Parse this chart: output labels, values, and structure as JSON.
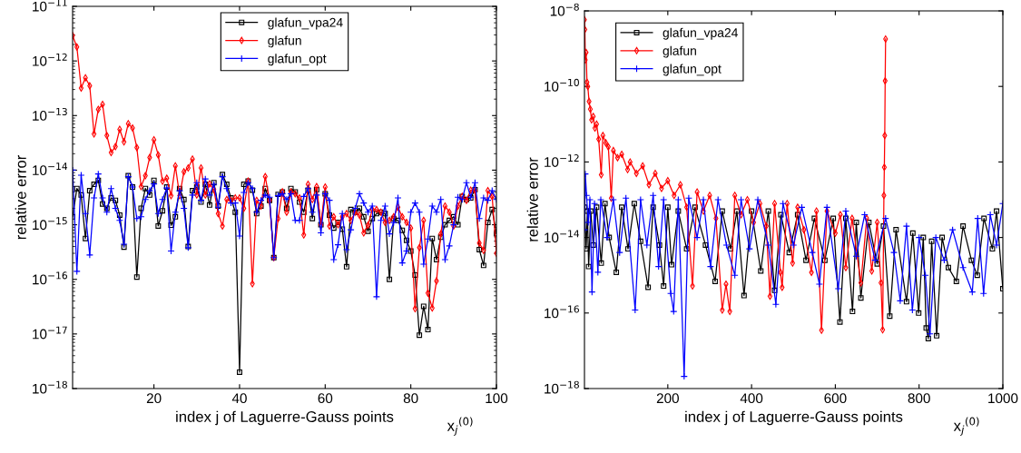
{
  "chart_data": [
    {
      "type": "line",
      "xlabel": "index j of Laguerre-Gauss points",
      "ylabel": "relative error",
      "annotations": [
        "x$_{j}$$^{(0)}$"
      ],
      "log": "y",
      "legend": "top",
      "grid": false,
      "xlim": [
        1,
        100
      ],
      "xticks": [
        20,
        40,
        60,
        80,
        100
      ],
      "ylim": [
        1e-18,
        1e-11
      ],
      "yticks": [
        {
          "value": 1e-18,
          "label": "10$^{−18}$"
        },
        {
          "value": 1e-17,
          "label": "10$^{−17}$"
        },
        {
          "value": 1e-16,
          "label": "10$^{−16}$"
        },
        {
          "value": 1e-15,
          "label": "10$^{−15}$"
        },
        {
          "value": 1e-14,
          "label": "10$^{−14}$"
        },
        {
          "value": 1e-13,
          "label": "10$^{−13}$"
        },
        {
          "value": 1e-12,
          "label": "10$^{−12}$"
        },
        {
          "value": 1e-11,
          "label": "10$^{−11}$"
        }
      ],
      "x": [
        1,
        2,
        3,
        4,
        5,
        6,
        7,
        8,
        9,
        10,
        11,
        12,
        13,
        14,
        15,
        16,
        17,
        18,
        19,
        20,
        21,
        22,
        23,
        24,
        25,
        26,
        27,
        28,
        29,
        30,
        31,
        32,
        33,
        34,
        35,
        36,
        37,
        38,
        39,
        40,
        41,
        42,
        43,
        44,
        45,
        46,
        47,
        48,
        49,
        50,
        51,
        52,
        53,
        54,
        55,
        56,
        57,
        58,
        59,
        60,
        61,
        62,
        63,
        64,
        65,
        66,
        67,
        68,
        69,
        70,
        71,
        72,
        73,
        74,
        75,
        76,
        77,
        78,
        79,
        80,
        81,
        82,
        83,
        84,
        85,
        86,
        87,
        88,
        89,
        90,
        91,
        92,
        93,
        94,
        95,
        96,
        97,
        98,
        99,
        100
      ],
      "series": [
        {
          "name": "glafun_vpa24",
          "color": "#000000",
          "marker": "square",
          "values": [
            1.4e-15,
            4.6e-15,
            3.5e-15,
            5.6e-16,
            4.2e-15,
            5.5e-15,
            6.5e-15,
            2.4e-15,
            2e-15,
            3.1e-15,
            2.8e-15,
            1.5e-15,
            3.9e-16,
            7.9e-15,
            4.9e-15,
            1.1e-16,
            2e-15,
            4.6e-15,
            3.5e-15,
            6.5e-15,
            9.5e-16,
            1.8e-15,
            4.9e-15,
            9.8e-16,
            1.4e-15,
            4.6e-15,
            2.9e-15,
            4e-16,
            4.2e-15,
            4.9e-15,
            2.6e-15,
            5.5e-15,
            2.3e-15,
            5.9e-15,
            2.2e-15,
            8.3e-15,
            5.5e-15,
            3.1e-15,
            1.7e-15,
            2e-18,
            5.5e-15,
            6.3e-15,
            4.3e-15,
            1.6e-15,
            2.2e-15,
            4.6e-15,
            2.8e-15,
            2.5e-16,
            3.6e-15,
            4e-15,
            2e-15,
            4.6e-15,
            4e-15,
            2.6e-15,
            1.7e-15,
            4.3e-15,
            1.3e-15,
            4.4e-15,
            1e-15,
            3.7e-15,
            1.5e-15,
            8.7e-16,
            1.1e-15,
            8.3e-16,
            1.7e-16,
            1.9e-15,
            1.7e-15,
            2e-15,
            1.4e-15,
            7.6e-16,
            1.3e-15,
            1.6e-15,
            1.7e-15,
            1.6e-15,
            1e-16,
            1.3e-15,
            1.2e-15,
            7.9e-16,
            5.2e-16,
            3.3e-16,
            1.2e-16,
            9.5e-18,
            3.2e-17,
            1.2e-17,
            5.6e-16,
            2.3e-16,
            5.9e-16,
            1e-15,
            1.2e-15,
            1.4e-15,
            1e-15,
            3.3e-15,
            2.9e-15,
            3.1e-15,
            4.4e-15,
            3.5e-16,
            1.8e-16,
            1.1e-15,
            1.9e-15,
            6.9e-16
          ]
        },
        {
          "name": "glafun",
          "color": "#ff0000",
          "marker": "diamond",
          "values": [
            2.9e-12,
            1.8e-12,
            3.2e-13,
            4.9e-13,
            3.5e-13,
            4.6e-14,
            1.3e-13,
            1.6e-13,
            4.3e-14,
            2.1e-14,
            2.7e-14,
            5.6e-14,
            3.3e-14,
            7.1e-14,
            5.9e-14,
            2.6e-14,
            5e-15,
            7.9e-15,
            1.7e-14,
            3.6e-14,
            1.9e-14,
            6.3e-15,
            7.1e-15,
            3.4e-15,
            1.2e-14,
            3.4e-15,
            9.3e-15,
            1.1e-14,
            1.6e-14,
            3.5e-15,
            1.1e-14,
            3.5e-15,
            5.6e-15,
            4.4e-15,
            1.6e-15,
            9.5e-16,
            2.9e-15,
            2.8e-15,
            3.1e-15,
            3.1e-15,
            2e-15,
            6.3e-15,
            8.3e-17,
            2.8e-15,
            2.2e-15,
            7.6e-15,
            2.8e-15,
            2.5e-16,
            1.3e-15,
            4e-15,
            1.7e-15,
            4e-15,
            3.7e-15,
            3.1e-15,
            6.5e-16,
            5.5e-15,
            2.9e-15,
            5e-15,
            1e-15,
            4.9e-15,
            9.5e-16,
            1.4e-15,
            1e-15,
            1.4e-15,
            1.6e-15,
            1.2e-15,
            1.7e-15,
            1.5e-15,
            7.1e-16,
            9.8e-16,
            1.9e-15,
            1.9e-15,
            1.7e-15,
            1.1e-15,
            1.2e-15,
            1.4e-15,
            2.1e-15,
            1.4e-15,
            1.1e-15,
            8.7e-16,
            2.9e-17,
            3.8e-16,
            1.2e-15,
            5.6e-17,
            3e-17,
            9.3e-17,
            6.8e-16,
            2.2e-15,
            1.7e-15,
            9.5e-16,
            2.2e-15,
            3.3e-15,
            2.8e-15,
            4.3e-15,
            4.2e-15,
            4.6e-16,
            3.4e-16,
            4.2e-15,
            3.3e-15,
            3e-16
          ]
        },
        {
          "name": "glafun_opt",
          "color": "#0000ff",
          "marker": "cross",
          "values": [
            1e-14,
            1.4e-16,
            8.1e-15,
            1.6e-15,
            2.8e-16,
            3.1e-15,
            8.5e-15,
            3.1e-15,
            1.7e-15,
            4.6e-15,
            2e-15,
            1.2e-15,
            4.4e-16,
            7.6e-15,
            4.9e-15,
            1.3e-15,
            1.4e-15,
            2.9e-15,
            4.2e-15,
            5.6e-15,
            1.6e-15,
            2.9e-15,
            4.7e-15,
            3.3e-16,
            1.7e-15,
            4.2e-15,
            2e-15,
            3.8e-16,
            3.5e-15,
            5.9e-15,
            2.8e-15,
            6.9e-15,
            3.5e-15,
            5.5e-15,
            2.1e-15,
            7.6e-15,
            4.6e-15,
            2.5e-15,
            2.5e-15,
            6.2e-16,
            3.9e-15,
            5.9e-15,
            4.6e-15,
            1.7e-15,
            2.8e-15,
            3.5e-15,
            3.2e-15,
            2.5e-16,
            3.4e-15,
            3.7e-15,
            2.9e-15,
            3.7e-15,
            1.2e-15,
            1.2e-15,
            3.3e-15,
            4.6e-15,
            1.7e-15,
            3.5e-15,
            7.1e-16,
            3.7e-15,
            2.8e-15,
            2.3e-16,
            4.3e-16,
            1.6e-15,
            3.5e-16,
            8.1e-16,
            2e-15,
            3.7e-15,
            2.5e-15,
            1.7e-15,
            2.2e-15,
            4.8e-17,
            1.2e-15,
            2.2e-15,
            6.8e-16,
            1.1e-15,
            3.1e-15,
            2e-16,
            3.3e-16,
            1.7e-15,
            2.5e-15,
            1.7e-15,
            1.9e-16,
            5.5e-16,
            2.2e-15,
            1.7e-15,
            2.9e-15,
            2.3e-16,
            4.1e-16,
            1e-15,
            3.2e-15,
            2.9e-15,
            5.9e-15,
            3.2e-15,
            5.9e-15,
            1.3e-15,
            3.1e-15,
            2.8e-15,
            4.2e-15,
            2.9e-15
          ]
        }
      ]
    },
    {
      "type": "line",
      "xlabel": "index j of Laguerre-Gauss points",
      "ylabel": "relative error",
      "annotations": [
        "x$_{j}$$^{(0)}$"
      ],
      "log": "y",
      "legend": "top left",
      "grid": false,
      "xlim": [
        1,
        1000
      ],
      "xticks": [
        200,
        400,
        600,
        800,
        1000
      ],
      "ylim": [
        1e-18,
        1e-08
      ],
      "yticks": [
        {
          "value": 1e-18,
          "label": "10$^{−18}$"
        },
        {
          "value": 1e-16,
          "label": "10$^{−16}$"
        },
        {
          "value": 1e-14,
          "label": "10$^{−14}$"
        },
        {
          "value": 1e-12,
          "label": "10$^{−12}$"
        },
        {
          "value": 1e-10,
          "label": "10$^{−10}$"
        },
        {
          "value": 1e-08,
          "label": "10$^{−8}$"
        }
      ],
      "series": [
        {
          "name": "glafun_vpa24",
          "color": "#000000",
          "marker": "square",
          "x": [
            1,
            5,
            8,
            11,
            16,
            22,
            30,
            41,
            50,
            60,
            77,
            90,
            105,
            120,
            135,
            153,
            165,
            180,
            190,
            200,
            209,
            225,
            245,
            265,
            290,
            313,
            330,
            350,
            365,
            382,
            400,
            422,
            440,
            455,
            470,
            490,
            510,
            530,
            550,
            575,
            595,
            611,
            625,
            641,
            650,
            661,
            680,
            700,
            715,
            730,
            745,
            770,
            785,
            799,
            810,
            817,
            822,
            830,
            842,
            855,
            870,
            889,
            905,
            925,
            939,
            955,
            975,
            985,
            1000
          ],
          "values": [
            6.3e-14,
            5e-15,
            5e-14,
            1.7e-15,
            5e-14,
            6.3e-15,
            6.3e-14,
            2.1e-15,
            7.9e-14,
            1e-14,
            1.2e-15,
            6.3e-14,
            5e-15,
            7.9e-14,
            7.9e-15,
            4.8e-16,
            6.3e-14,
            6.3e-15,
            5.2e-16,
            6.3e-14,
            1.9e-15,
            5e-14,
            5e-15,
            6.3e-14,
            6.3e-15,
            6.9e-16,
            5e-14,
            5e-15,
            5e-14,
            2.9e-16,
            5e-14,
            1.3e-15,
            5e-14,
            4e-16,
            4e-14,
            4e-15,
            4e-14,
            2.5e-15,
            3.2e-14,
            2.5e-15,
            3.2e-14,
            5.8e-17,
            3.2e-14,
            1.1e-16,
            2.5e-14,
            2.5e-16,
            2.5e-14,
            2e-15,
            2e-14,
            8.3e-17,
            1.6e-14,
            2e-16,
            1.3e-14,
            1e-16,
            1e-14,
            4e-17,
            2.1e-17,
            7.9e-15,
            2.5e-17,
            1e-14,
            1.6e-15,
            6.9e-16,
            2e-14,
            2.5e-15,
            1e-15,
            3.2e-14,
            5e-15,
            5e-14,
            4.4e-16
          ]
        },
        {
          "name": "glafun",
          "color": "#ff0000",
          "marker": "diamond",
          "x": [
            1,
            2,
            3,
            5,
            7,
            9,
            12,
            15,
            18,
            22,
            26,
            30,
            35,
            41,
            45,
            52,
            58,
            65,
            70,
            80,
            90,
            104,
            110,
            125,
            140,
            155,
            170,
            185,
            200,
            215,
            230,
            245,
            259,
            270,
            285,
            300,
            315,
            330,
            339,
            348,
            360,
            375,
            390,
            405,
            420,
            435,
            444,
            455,
            469,
            473,
            485,
            498,
            510,
            525,
            543,
            555,
            567,
            580,
            600,
            612,
            625,
            640,
            661,
            675,
            687,
            700,
            709,
            713,
            716,
            717,
            718,
            719,
            720
          ],
          "values": [
            5.8e-09,
            3.2e-09,
            5e-10,
            7.9e-10,
            1.3e-10,
            1e-10,
            4e-11,
            2.5e-11,
            1.3e-11,
            1.6e-11,
            7.9e-12,
            1e-11,
            4e-12,
            4.6e-13,
            5e-12,
            3.2e-12,
            2.5e-12,
            1.1e-13,
            2e-12,
            1.3e-12,
            1.6e-12,
            6.3e-13,
            1e-12,
            5e-13,
            7.9e-13,
            2.5e-13,
            5e-13,
            2e-13,
            3.2e-13,
            1.3e-13,
            2.5e-13,
            6.3e-14,
            5.2e-16,
            1.6e-13,
            5e-14,
            1.3e-13,
            3.2e-14,
            1.2e-16,
            5.8e-16,
            1.1e-16,
            1.3e-13,
            4e-14,
            1e-13,
            2.5e-14,
            7.9e-14,
            2e-14,
            2.8e-16,
            7.9e-14,
            1.2e-15,
            4.8e-16,
            7.9e-14,
            2.1e-15,
            6.3e-14,
            1.6e-14,
            1.2e-15,
            5e-14,
            3.5e-17,
            5e-14,
            1.3e-14,
            4e-14,
            1.6e-15,
            3.2e-14,
            6.3e-16,
            3.2e-14,
            1.3e-15,
            2.5e-14,
            6.3e-16,
            3.6e-17,
            1.3e-13,
            7.2e-13,
            5e-12,
            1.4e-10,
            1.8e-09
          ]
        },
        {
          "name": "glafun_opt",
          "color": "#0000ff",
          "marker": "cross",
          "x": [
            1,
            3,
            6,
            10,
            14,
            19,
            25,
            33,
            40,
            55,
            70,
            85,
            100,
            122,
            135,
            150,
            165,
            178,
            190,
            207,
            214,
            225,
            239,
            250,
            270,
            285,
            302,
            320,
            340,
            360,
            375,
            395,
            415,
            440,
            458,
            475,
            500,
            520,
            545,
            562,
            580,
            607,
            625,
            650,
            670,
            695,
            720,
            740,
            755,
            770,
            784,
            800,
            815,
            826,
            840,
            860,
            880,
            905,
            927,
            940,
            954,
            970,
            985,
            1000
          ],
          "values": [
            1.6e-14,
            4.8e-13,
            1.3e-13,
            2.5e-14,
            1e-13,
            3.6e-16,
            7.9e-14,
            1.2e-15,
            1e-13,
            1e-14,
            1e-13,
            4e-15,
            1.1e-13,
            1.2e-16,
            1e-13,
            6.3e-15,
            1.3e-13,
            1.7e-15,
            1e-13,
            3.3e-16,
            1.1e-16,
            1e-13,
            2.1e-18,
            1.1e-13,
            1e-14,
            1e-13,
            1.7e-15,
            1e-13,
            6.3e-15,
            1e-15,
            1e-13,
            5e-15,
            1e-13,
            6.3e-15,
            1.7e-16,
            7.9e-14,
            6.3e-15,
            6.3e-14,
            4e-15,
            5.8e-16,
            6.3e-14,
            4.4e-16,
            5e-14,
            3.2e-15,
            4e-14,
            2.5e-15,
            3.2e-14,
            4e-15,
            2.1e-16,
            2e-14,
            1.2e-16,
            1e-14,
            1e-15,
            2.8e-17,
            1e-14,
            2.5e-15,
            1.6e-14,
            1.6e-15,
            3.6e-16,
            3.2e-14,
            3.3e-16,
            4e-14,
            6.3e-15,
            7.9e-14
          ]
        }
      ]
    }
  ]
}
